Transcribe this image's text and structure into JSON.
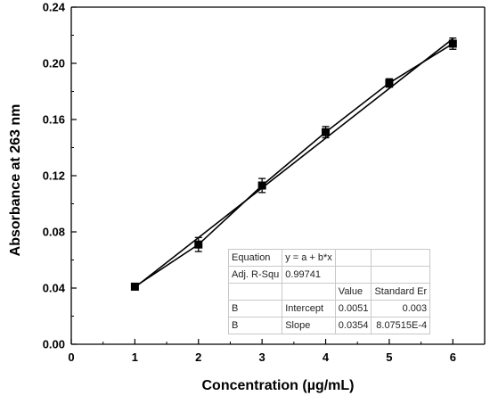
{
  "chart_data": {
    "type": "line",
    "xlabel": "Concentration (µg/mL)",
    "ylabel": "Absorbance at 263 nm",
    "xlim": [
      0,
      6.5
    ],
    "ylim": [
      0,
      0.24
    ],
    "x_ticks": [
      0,
      1,
      2,
      3,
      4,
      5,
      6
    ],
    "y_ticks": [
      "0.00",
      "0.04",
      "0.08",
      "0.12",
      "0.16",
      "0.20",
      "0.24"
    ],
    "grid": false,
    "series": [
      {
        "marker": "square",
        "x": [
          1,
          2,
          3,
          4,
          5,
          6
        ],
        "y": [
          0.041,
          0.071,
          0.113,
          0.151,
          0.186,
          0.214
        ],
        "error": [
          0.002,
          0.005,
          0.005,
          0.004,
          0.003,
          0.004
        ]
      }
    ],
    "fit_line": {
      "intercept": 0.0051,
      "slope": 0.0354
    }
  },
  "fit_table": {
    "rows": [
      [
        "Equation",
        "y = a + b*x",
        "",
        ""
      ],
      [
        "Adj. R-Squ",
        "0.99741",
        "",
        ""
      ],
      [
        "",
        "",
        "Value",
        "Standard Er"
      ],
      [
        "B",
        "Intercept",
        "0.0051",
        "0.003"
      ],
      [
        "B",
        "Slope",
        "0.0354",
        "8.07515E-4"
      ]
    ]
  }
}
